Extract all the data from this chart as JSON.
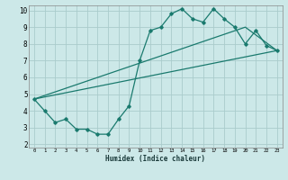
{
  "bg_color": "#cce8e8",
  "grid_color": "#aacccc",
  "line_color": "#1a7a6e",
  "xlabel": "Humidex (Indice chaleur)",
  "xlim": [
    -0.5,
    23.5
  ],
  "ylim": [
    1.8,
    10.3
  ],
  "yticks": [
    2,
    3,
    4,
    5,
    6,
    7,
    8,
    9,
    10
  ],
  "xticks": [
    0,
    1,
    2,
    3,
    4,
    5,
    6,
    7,
    8,
    9,
    10,
    11,
    12,
    13,
    14,
    15,
    16,
    17,
    18,
    19,
    20,
    21,
    22,
    23
  ],
  "line1_x": [
    0,
    1,
    2,
    3,
    4,
    5,
    6,
    7,
    8,
    9,
    10,
    11,
    12,
    13,
    14,
    15,
    16,
    17,
    18,
    19,
    20,
    21,
    22,
    23
  ],
  "line1_y": [
    4.7,
    4.0,
    3.3,
    3.5,
    2.9,
    2.9,
    2.6,
    2.6,
    3.5,
    4.3,
    7.0,
    8.8,
    9.0,
    9.8,
    10.1,
    9.5,
    9.3,
    10.1,
    9.5,
    9.0,
    8.0,
    8.8,
    7.9,
    7.6
  ],
  "line2_x": [
    0,
    20,
    23
  ],
  "line2_y": [
    4.7,
    9.0,
    7.6
  ],
  "line3_x": [
    0,
    23
  ],
  "line3_y": [
    4.7,
    7.6
  ]
}
